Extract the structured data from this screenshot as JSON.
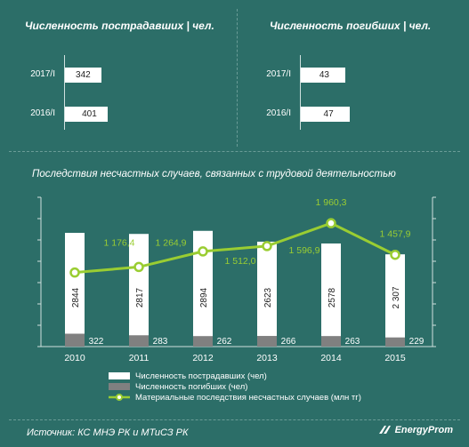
{
  "left_panel": {
    "title": "Численность  пострадавших   | чел.",
    "rows": [
      {
        "year": "2017/I",
        "value": 342
      },
      {
        "year": "2016/I",
        "value": 401
      }
    ]
  },
  "right_panel": {
    "title": "Численность  погибших  | чел.",
    "rows": [
      {
        "year": "2017/I",
        "value": 43
      },
      {
        "year": "2016/I",
        "value": 47
      }
    ]
  },
  "chart_title": "Последствия  несчастных случаев,  связанных с трудовой деятельностью",
  "chart_data": {
    "type": "bar",
    "categories": [
      "2010",
      "2011",
      "2012",
      "2013",
      "2014",
      "2015"
    ],
    "series": [
      {
        "name": "Численность пострадавших (чел)",
        "values": [
          2844,
          2817,
          2894,
          2623,
          2578,
          2307
        ],
        "labels": [
          "2844",
          "2817",
          "2894",
          "2623",
          "2578",
          "2 307"
        ],
        "color": "#ffffff"
      },
      {
        "name": "Численность погибших (чел)",
        "values": [
          322,
          283,
          262,
          266,
          263,
          229
        ],
        "labels": [
          "322",
          "283",
          "262",
          "266",
          "263",
          "229"
        ],
        "color": "#808080"
      },
      {
        "name": "Материальные последствия несчастных случаев (млн тг)",
        "values": [
          1176.4,
          1264.9,
          1512.0,
          1596.9,
          1960.3,
          1457.9
        ],
        "labels": [
          "1 176,4",
          "1 264,9",
          "1 512,0",
          "1 596,9",
          "1 960,3",
          "1 457,9"
        ],
        "color": "#9acd32",
        "type": "line"
      }
    ],
    "bar_ylim": [
      0,
      3000
    ],
    "line_ylim": [
      0,
      2400
    ],
    "grid": false
  },
  "source": "Источник: КС МНЭ РК и МТиСЗ РК",
  "brand": "EnergyProm"
}
